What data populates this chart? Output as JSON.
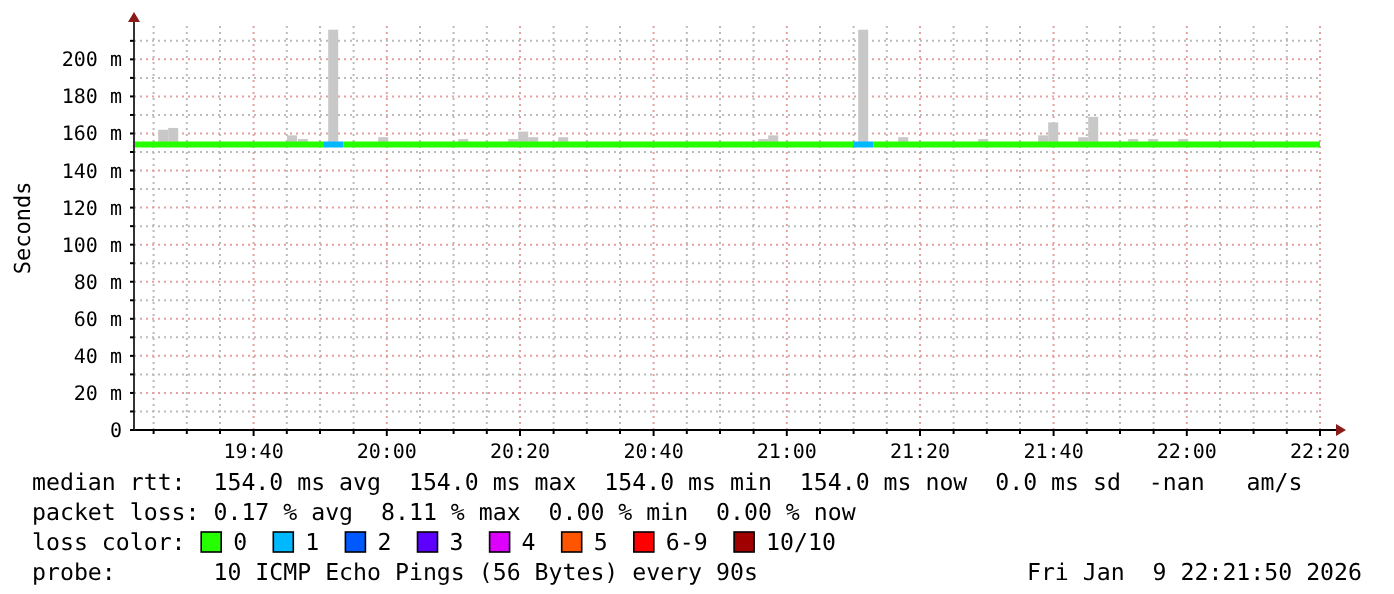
{
  "chart_data": {
    "type": "bar",
    "ylabel": "Seconds",
    "xlim": [
      19.368,
      22.333
    ],
    "xticks": [
      {
        "value": 19.417,
        "label": null
      },
      {
        "value": 19.5,
        "label": null
      },
      {
        "value": 19.583,
        "label": null
      },
      {
        "value": 19.667,
        "label": "19:40"
      },
      {
        "value": 19.75,
        "label": null
      },
      {
        "value": 19.833,
        "label": null
      },
      {
        "value": 19.917,
        "label": null
      },
      {
        "value": 20,
        "label": "20:00"
      },
      {
        "value": 20.083,
        "label": null
      },
      {
        "value": 20.167,
        "label": null
      },
      {
        "value": 20.25,
        "label": null
      },
      {
        "value": 20.333,
        "label": "20:20"
      },
      {
        "value": 20.417,
        "label": null
      },
      {
        "value": 20.5,
        "label": null
      },
      {
        "value": 20.583,
        "label": null
      },
      {
        "value": 20.667,
        "label": "20:40"
      },
      {
        "value": 20.75,
        "label": null
      },
      {
        "value": 20.833,
        "label": null
      },
      {
        "value": 20.917,
        "label": null
      },
      {
        "value": 21,
        "label": "21:00"
      },
      {
        "value": 21.083,
        "label": null
      },
      {
        "value": 21.167,
        "label": null
      },
      {
        "value": 21.25,
        "label": null
      },
      {
        "value": 21.333,
        "label": "21:20"
      },
      {
        "value": 21.417,
        "label": null
      },
      {
        "value": 21.5,
        "label": null
      },
      {
        "value": 21.583,
        "label": null
      },
      {
        "value": 21.667,
        "label": "21:40"
      },
      {
        "value": 21.75,
        "label": null
      },
      {
        "value": 21.833,
        "label": null
      },
      {
        "value": 21.917,
        "label": null
      },
      {
        "value": 22,
        "label": "22:00"
      },
      {
        "value": 22.083,
        "label": null
      },
      {
        "value": 22.167,
        "label": null
      },
      {
        "value": 22.25,
        "label": null
      },
      {
        "value": 22.333,
        "label": "22:20"
      }
    ],
    "ylim": [
      0,
      218
    ],
    "yticks": [
      {
        "value": 0,
        "label": "0"
      },
      {
        "value": 10,
        "label": null
      },
      {
        "value": 20,
        "label": "20 m"
      },
      {
        "value": 30,
        "label": null
      },
      {
        "value": 40,
        "label": "40 m"
      },
      {
        "value": 50,
        "label": null
      },
      {
        "value": 60,
        "label": "60 m"
      },
      {
        "value": 70,
        "label": null
      },
      {
        "value": 80,
        "label": "80 m"
      },
      {
        "value": 90,
        "label": null
      },
      {
        "value": 100,
        "label": "100 m"
      },
      {
        "value": 110,
        "label": null
      },
      {
        "value": 120,
        "label": "120 m"
      },
      {
        "value": 130,
        "label": null
      },
      {
        "value": 140,
        "label": "140 m"
      },
      {
        "value": 150,
        "label": null
      },
      {
        "value": 160,
        "label": "160 m"
      },
      {
        "value": 170,
        "label": null
      },
      {
        "value": 180,
        "label": "180 m"
      },
      {
        "value": 190,
        "label": null
      },
      {
        "value": 200,
        "label": "200 m"
      },
      {
        "value": 210,
        "label": null
      }
    ],
    "grid": true,
    "legend": "bottom",
    "legend_title": "loss color:",
    "series": [
      {
        "color": "#c8c8c8",
        "base": [
          154,
          154,
          154,
          154,
          154,
          154,
          154,
          154,
          154,
          154,
          154,
          154,
          154,
          154,
          154,
          154,
          154,
          154,
          154,
          154,
          154,
          154,
          154
        ],
        "x": [
          19.441,
          19.466,
          19.763,
          19.79,
          19.866,
          19.991,
          20.191,
          20.316,
          20.341,
          20.366,
          20.441,
          20.941,
          20.966,
          21.191,
          21.291,
          21.491,
          21.641,
          21.666,
          21.741,
          21.766,
          21.866,
          21.916,
          21.991
        ],
        "values": [
          8,
          9,
          5,
          3,
          62,
          4,
          3,
          3,
          7,
          4,
          4,
          3,
          5,
          62,
          4,
          3,
          5,
          12,
          4,
          15,
          3,
          3,
          3
        ]
      },
      {
        "type": "line",
        "name": "0",
        "color": "#26ff00",
        "x": [
          19.368,
          19.841,
          19.866,
          19.891,
          21.166,
          21.191,
          21.216,
          22.333
        ],
        "values": [
          154,
          154,
          null,
          154,
          154,
          null,
          154,
          154
        ]
      },
      {
        "type": "line",
        "name": "1",
        "color": "#00b8ff",
        "x": [
          19.841,
          19.891,
          19.9,
          21.166,
          21.216
        ],
        "values": [
          154,
          154,
          null,
          154,
          154
        ]
      },
      {
        "type": "line",
        "name": "2",
        "color": "#0059ff"
      },
      {
        "type": "line",
        "name": "3",
        "color": "#5e00ff"
      },
      {
        "type": "line",
        "name": "4",
        "color": "#dd00ff"
      },
      {
        "type": "line",
        "name": "5",
        "color": "#ff5500"
      },
      {
        "type": "line",
        "name": "6-9",
        "color": "#ff0000"
      },
      {
        "type": "line",
        "name": "10/10",
        "color": "#a10000"
      }
    ],
    "annotations": [
      "median rtt:  154.0 ms avg  154.0 ms max  154.0 ms min  154.0 ms now  0.0 ms sd  -nan   am/s",
      "packet loss: 0.17 % avg  8.11 % max  0.00 % min  0.00 % now",
      "probe:       10 ICMP Echo Pings (56 Bytes) every 90s",
      "Fri Jan  9 22:21:50 2026"
    ]
  }
}
